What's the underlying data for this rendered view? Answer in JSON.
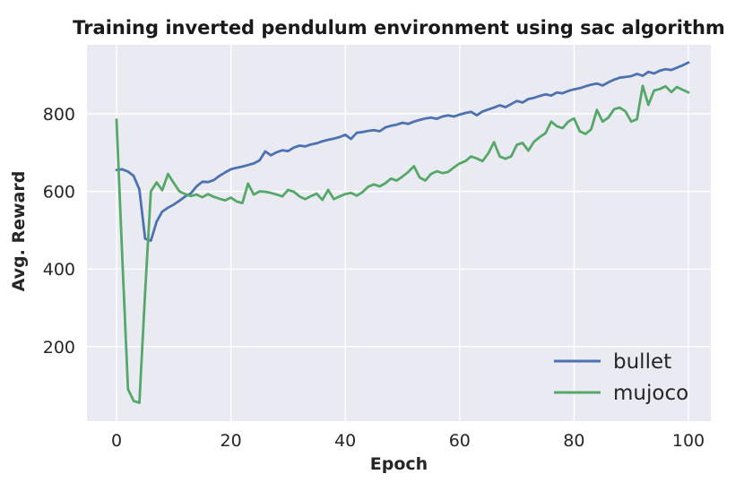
{
  "figure": {
    "background": "#ffffff"
  },
  "chart_data": {
    "type": "line",
    "title": "Training inverted pendulum environment using sac algorithm",
    "xlabel": "Epoch",
    "ylabel": "Avg. Reward",
    "grid": true,
    "legend_position": "lower right",
    "plot_background": "#eaeaf2",
    "grid_color": "#ffffff",
    "text_color": "#262626",
    "xticks": [
      0,
      20,
      40,
      60,
      80,
      100
    ],
    "yticks": [
      200,
      400,
      600,
      800
    ],
    "xlim": [
      -5.2,
      103.9
    ],
    "ylim": [
      6,
      979
    ],
    "x": [
      0,
      1,
      2,
      3,
      4,
      5,
      6,
      7,
      8,
      9,
      10,
      11,
      12,
      13,
      14,
      15,
      16,
      17,
      18,
      19,
      20,
      21,
      22,
      23,
      24,
      25,
      26,
      27,
      28,
      29,
      30,
      31,
      32,
      33,
      34,
      35,
      36,
      37,
      38,
      39,
      40,
      41,
      42,
      43,
      44,
      45,
      46,
      47,
      48,
      49,
      50,
      51,
      52,
      53,
      54,
      55,
      56,
      57,
      58,
      59,
      60,
      61,
      62,
      63,
      64,
      65,
      66,
      67,
      68,
      69,
      70,
      71,
      72,
      73,
      74,
      75,
      76,
      77,
      78,
      79,
      80,
      81,
      82,
      83,
      84,
      85,
      86,
      87,
      88,
      89,
      90,
      91,
      92,
      93,
      94,
      95,
      96,
      97,
      98,
      99,
      100
    ],
    "series": [
      {
        "name": "bullet",
        "color": "#4c72b0",
        "values": [
          655,
          657,
          651,
          640,
          605,
          478,
          473,
          522,
          548,
          558,
          566,
          576,
          587,
          595,
          613,
          625,
          624,
          629,
          640,
          649,
          657,
          661,
          664,
          668,
          672,
          680,
          703,
          693,
          701,
          706,
          704,
          713,
          718,
          716,
          721,
          724,
          729,
          733,
          736,
          740,
          746,
          735,
          751,
          753,
          756,
          758,
          755,
          765,
          769,
          772,
          777,
          774,
          780,
          784,
          788,
          790,
          787,
          793,
          796,
          793,
          798,
          802,
          805,
          796,
          806,
          811,
          816,
          822,
          817,
          825,
          833,
          829,
          838,
          841,
          846,
          850,
          847,
          855,
          853,
          859,
          863,
          866,
          871,
          875,
          878,
          873,
          881,
          888,
          893,
          895,
          897,
          903,
          898,
          908,
          904,
          911,
          915,
          913,
          919,
          925,
          932
        ]
      },
      {
        "name": "mujoco",
        "color": "#55a868",
        "values": [
          785,
          430,
          90,
          60,
          55,
          340,
          600,
          623,
          603,
          645,
          622,
          600,
          593,
          588,
          592,
          585,
          593,
          586,
          581,
          577,
          584,
          574,
          570,
          620,
          592,
          600,
          599,
          596,
          592,
          587,
          604,
          599,
          587,
          580,
          588,
          594,
          578,
          604,
          580,
          587,
          593,
          596,
          589,
          598,
          612,
          618,
          613,
          621,
          633,
          628,
          638,
          650,
          665,
          636,
          628,
          645,
          652,
          647,
          650,
          662,
          672,
          678,
          690,
          685,
          678,
          698,
          727,
          690,
          684,
          690,
          720,
          725,
          705,
          728,
          740,
          750,
          780,
          768,
          763,
          780,
          788,
          755,
          748,
          760,
          810,
          780,
          790,
          812,
          816,
          806,
          780,
          786,
          872,
          823,
          860,
          864,
          871,
          856,
          869,
          862,
          855
        ]
      }
    ]
  }
}
